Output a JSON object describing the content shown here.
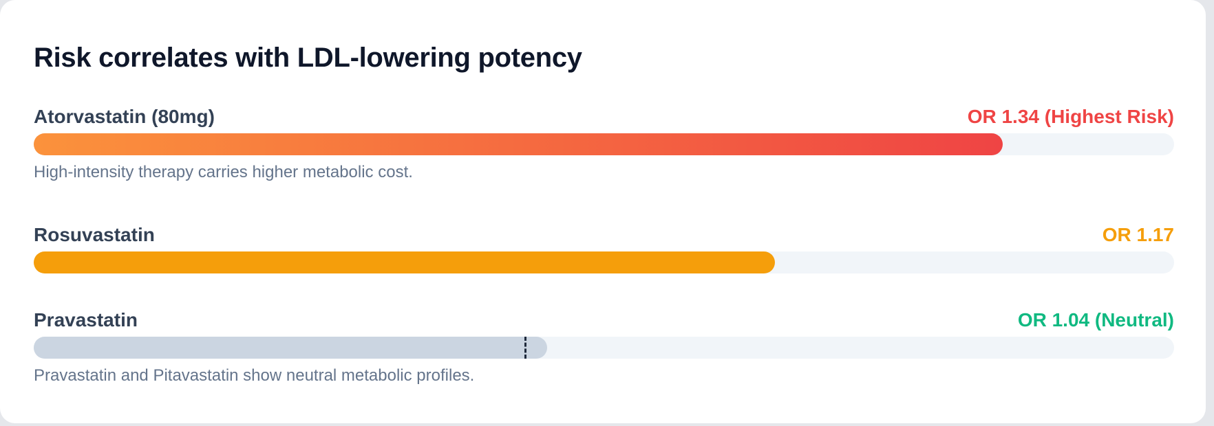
{
  "title": "Risk correlates with LDL-lowering potency",
  "rows": [
    {
      "label": "Atorvastatin (80mg)",
      "value_text": "OR 1.34 (Highest Risk)",
      "fill_percent": 85,
      "color": "#ef4444",
      "gradient_start": "#fb923c",
      "note": "High-intensity therapy carries higher metabolic cost."
    },
    {
      "label": "Rosuvastatin",
      "value_text": "OR 1.17",
      "fill_percent": 65,
      "color": "#f59e0b"
    },
    {
      "label": "Pravastatin",
      "value_text": "OR 1.04 (Neutral)",
      "fill_percent": 45,
      "marker_percent": 43,
      "color": "#10b981",
      "bar_color": "#cbd5e1",
      "note": "Pravastatin and Pitavastatin show neutral metabolic profiles."
    }
  ]
}
